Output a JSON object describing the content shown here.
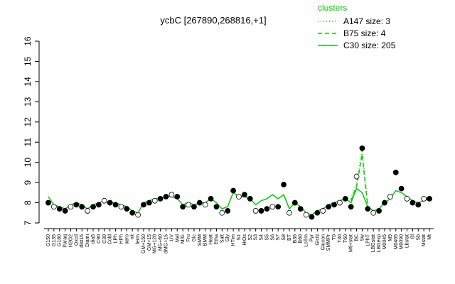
{
  "chart_data": {
    "type": "line",
    "title": "ycbC [267890,268816,+1]",
    "legend_title": "clusters",
    "legend_position": "top-right",
    "ylim": [
      7,
      16
    ],
    "yticks": [
      7,
      8,
      9,
      10,
      11,
      12,
      13,
      14,
      15,
      16
    ],
    "categories": [
      "G150",
      "G135",
      "G180",
      "Paraq",
      "H2O2",
      "Oxctl",
      "dist15",
      "Diami",
      "dia5",
      "C90",
      "C30",
      "Cold",
      "LPh",
      "HPh",
      "aero",
      "nit",
      "ferm",
      "GM+150",
      "GM+15",
      "MG+120",
      "MG+60",
      "dMG+15",
      "UV",
      "Mal",
      "M/G",
      "Fru",
      "Glc",
      "SMM",
      "BMM",
      "Heat",
      "Etha",
      "Salt",
      "Gly",
      "HTim",
      "S1",
      "HiOs",
      "S2",
      "S3",
      "S4",
      "S5",
      "S6",
      "S7",
      "S8",
      "BT",
      "B36",
      "B60",
      "LoTm",
      "Pyr",
      "GlcN",
      "Glucon",
      "SMMPr",
      "T0",
      "T30",
      "T60",
      "M9+stat",
      "BC",
      "Sw",
      "LPhT",
      "LBGstat",
      "LBGexp",
      "M0045",
      "M9",
      "M0405",
      "M0090",
      "Lbstat",
      "Bl",
      "Sb",
      "Mstat",
      "Mt"
    ],
    "values": [
      8.0,
      7.8,
      7.7,
      7.6,
      7.8,
      7.9,
      7.8,
      7.6,
      7.8,
      7.9,
      8.1,
      8.0,
      7.9,
      7.8,
      7.7,
      7.5,
      7.4,
      7.9,
      8.0,
      8.1,
      8.2,
      8.3,
      8.4,
      8.3,
      7.8,
      7.9,
      7.8,
      8.0,
      7.9,
      8.2,
      7.8,
      7.5,
      7.6,
      8.6,
      8.3,
      8.4,
      8.2,
      7.6,
      7.6,
      7.7,
      7.8,
      7.8,
      8.9,
      7.5,
      8.0,
      7.7,
      7.4,
      7.3,
      7.5,
      7.6,
      7.8,
      7.9,
      8.0,
      8.2,
      7.8,
      9.3,
      10.7,
      7.7,
      7.5,
      7.6,
      8.0,
      8.3,
      9.5,
      8.7,
      8.2,
      8.0,
      7.9,
      8.2,
      8.2
    ],
    "point_color": "#000000",
    "series": [
      {
        "name": "A147 size: 3",
        "color": "#00cc00",
        "dash": "dotted",
        "values": [
          null,
          null,
          null,
          null,
          null,
          null,
          null,
          null,
          null,
          null,
          null,
          null,
          null,
          null,
          null,
          null,
          null,
          null,
          null,
          null,
          null,
          null,
          null,
          null,
          null,
          null,
          null,
          null,
          null,
          null,
          null,
          null,
          null,
          null,
          null,
          null,
          null,
          null,
          null,
          null,
          null,
          null,
          null,
          null,
          null,
          null,
          null,
          null,
          null,
          null,
          null,
          null,
          null,
          null,
          8.2,
          9.0,
          10.6,
          7.9,
          null,
          null,
          null,
          null,
          null,
          null,
          null,
          null,
          null,
          null,
          null
        ]
      },
      {
        "name": "B75 size: 4",
        "color": "#00cc00",
        "dash": "dashed",
        "values": [
          null,
          null,
          null,
          null,
          null,
          null,
          null,
          null,
          null,
          null,
          null,
          null,
          null,
          null,
          null,
          null,
          null,
          null,
          null,
          null,
          null,
          null,
          null,
          null,
          null,
          null,
          null,
          null,
          null,
          null,
          null,
          null,
          null,
          null,
          null,
          null,
          null,
          null,
          null,
          null,
          null,
          null,
          null,
          null,
          null,
          null,
          null,
          null,
          null,
          null,
          null,
          null,
          null,
          null,
          8.1,
          8.8,
          10.4,
          7.8,
          null,
          null,
          null,
          null,
          null,
          null,
          null,
          null,
          null,
          null,
          null
        ]
      },
      {
        "name": "C30 size: 205",
        "color": "#00cc00",
        "dash": "solid",
        "values": [
          8.3,
          7.9,
          7.8,
          7.7,
          7.9,
          8.0,
          7.9,
          7.7,
          7.9,
          8.0,
          8.1,
          8.0,
          8.0,
          7.9,
          7.8,
          7.6,
          7.5,
          8.0,
          8.1,
          8.2,
          8.2,
          8.3,
          8.3,
          8.2,
          7.9,
          8.0,
          7.9,
          8.0,
          8.0,
          8.2,
          8.0,
          7.7,
          7.8,
          8.5,
          8.3,
          8.3,
          8.2,
          7.9,
          8.1,
          8.2,
          8.4,
          8.2,
          8.4,
          7.7,
          8.0,
          7.8,
          7.5,
          7.4,
          7.6,
          7.7,
          7.9,
          8.0,
          8.1,
          8.2,
          8.0,
          8.7,
          8.5,
          7.8,
          7.6,
          7.7,
          8.0,
          8.2,
          8.6,
          8.5,
          8.3,
          8.1,
          8.0,
          8.1,
          8.2
        ]
      }
    ]
  }
}
